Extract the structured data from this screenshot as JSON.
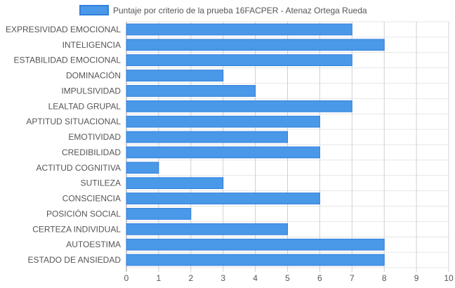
{
  "chart_data": {
    "type": "bar",
    "orientation": "horizontal",
    "legend_position": "top-center",
    "grid": true,
    "categories": [
      "EXPRESIVIDAD EMOCIONAL",
      "INTELIGENCIA",
      "ESTABILIDAD EMOCIONAL",
      "DOMINACIÓN",
      "IMPULSIVIDAD",
      "LEALTAD GRUPAL",
      "APTITUD SITUACIONAL",
      "EMOTIVIDAD",
      "CREDIBILIDAD",
      "ACTITUD COGNITIVA",
      "SUTILEZA",
      "CONSCIENCIA",
      "POSICIÓN SOCIAL",
      "CERTEZA INDIVIDUAL",
      "AUTOESTIMA",
      "ESTADO DE ANSIEDAD"
    ],
    "series": [
      {
        "name": "Puntaje por criterio de la prueba 16FACPER - Atenaz Ortega Rueda",
        "color": "#4a98e8",
        "border_color": "#2f7fdc",
        "values": [
          7,
          8,
          7,
          3,
          4,
          7,
          6,
          5,
          6,
          1,
          3,
          6,
          2,
          5,
          8,
          8
        ]
      }
    ],
    "xlim": [
      0,
      10
    ],
    "xticks": [
      0,
      1,
      2,
      3,
      4,
      5,
      6,
      7,
      8,
      9,
      10
    ]
  }
}
